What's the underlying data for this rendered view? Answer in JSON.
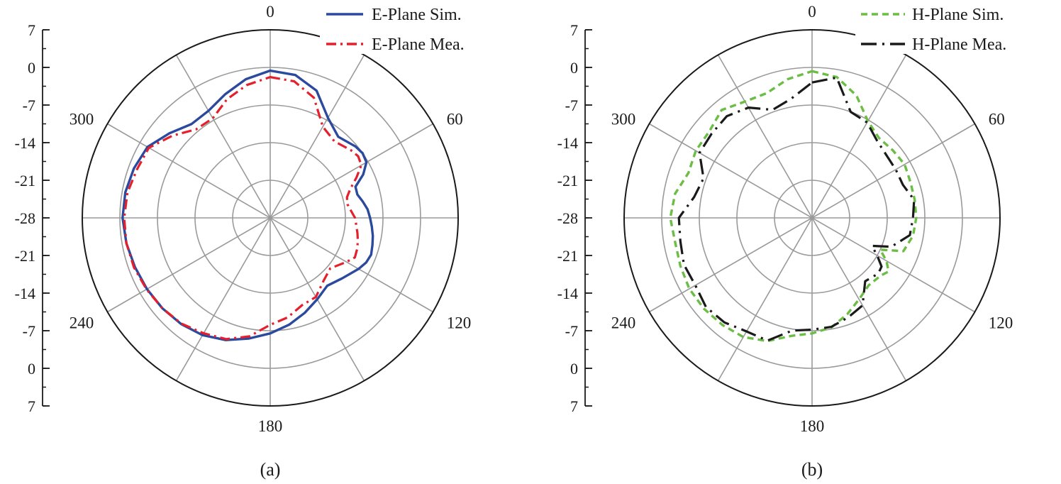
{
  "chart_data": [
    {
      "type": "polar-line",
      "panel_label": "(a)",
      "radial_axis": {
        "ticks": [
          7,
          0,
          -7,
          -14,
          -21,
          -28
        ],
        "scale_ticks_top": [
          "7",
          "0",
          "-7",
          "-14",
          "-21",
          "-28"
        ],
        "scale_ticks_bottom": [
          "-21",
          "-14",
          "-7",
          "0",
          "7"
        ],
        "range": [
          -28,
          7
        ]
      },
      "angle_labels": [
        {
          "angle": 0,
          "text": "0"
        },
        {
          "angle": 60,
          "text": "60"
        },
        {
          "angle": 120,
          "text": "120"
        },
        {
          "angle": 180,
          "text": "180"
        },
        {
          "angle": 240,
          "text": "240"
        },
        {
          "angle": 300,
          "text": "300"
        }
      ],
      "legend_position": "top-right",
      "series": [
        {
          "name": "E-Plane Sim.",
          "color": "#2b4a9e",
          "dash": "solid",
          "angles": [
            0,
            10,
            20,
            30,
            40,
            50,
            55,
            60,
            65,
            70,
            75,
            80,
            85,
            90,
            95,
            100,
            105,
            110,
            115,
            120,
            130,
            140,
            150,
            160,
            170,
            180,
            190,
            200,
            210,
            220,
            230,
            240,
            250,
            260,
            270,
            280,
            290,
            300,
            310,
            320,
            330,
            340,
            350
          ],
          "values": [
            -0.6,
            -1.0,
            -2.8,
            -6.5,
            -8.3,
            -7.3,
            -7.0,
            -7.3,
            -8.9,
            -11.1,
            -11.2,
            -10.5,
            -9.8,
            -9.4,
            -9.0,
            -8.6,
            -8.3,
            -8.0,
            -8.3,
            -9.0,
            -10.5,
            -11.5,
            -10.5,
            -9.2,
            -7.8,
            -6.5,
            -5.2,
            -3.8,
            -2.8,
            -2.2,
            -1.8,
            -1.5,
            -1.2,
            -0.8,
            -0.5,
            -0.6,
            -1.0,
            -1.6,
            -3.5,
            -5.2,
            -5.0,
            -3.5,
            -1.8
          ]
        },
        {
          "name": "E-Plane Mea.",
          "color": "#e3202c",
          "dash": "dashdot",
          "angles": [
            0,
            10,
            20,
            30,
            40,
            50,
            55,
            60,
            65,
            70,
            75,
            80,
            85,
            90,
            95,
            100,
            105,
            110,
            115,
            120,
            130,
            140,
            150,
            160,
            170,
            180,
            190,
            200,
            210,
            220,
            230,
            240,
            250,
            260,
            270,
            280,
            290,
            300,
            310,
            320,
            330,
            340,
            350
          ],
          "values": [
            -1.8,
            -2.2,
            -4.2,
            -8.4,
            -9.4,
            -8.4,
            -8.0,
            -8.4,
            -10.3,
            -12.1,
            -13.2,
            -13.4,
            -12.9,
            -12.2,
            -11.9,
            -11.5,
            -11.1,
            -10.8,
            -10.6,
            -11.6,
            -13.4,
            -12.6,
            -11.0,
            -10.7,
            -9.2,
            -8.1,
            -5.6,
            -4.0,
            -3.2,
            -2.3,
            -1.8,
            -1.4,
            -1.0,
            -0.8,
            -0.8,
            -1.0,
            -1.6,
            -1.9,
            -4.2,
            -6.5,
            -6.6,
            -4.5,
            -2.9
          ]
        }
      ]
    },
    {
      "type": "polar-line",
      "panel_label": "(b)",
      "radial_axis": {
        "ticks": [
          7,
          0,
          -7,
          -14,
          -21,
          -28
        ],
        "scale_ticks_top": [
          "7",
          "0",
          "-7",
          "-14",
          "-21",
          "-28"
        ],
        "scale_ticks_bottom": [
          "-21",
          "-14",
          "-7",
          "0",
          "7"
        ],
        "range": [
          -28,
          7
        ]
      },
      "angle_labels": [
        {
          "angle": 0,
          "text": "0"
        },
        {
          "angle": 60,
          "text": "60"
        },
        {
          "angle": 120,
          "text": "120"
        },
        {
          "angle": 180,
          "text": "180"
        },
        {
          "angle": 240,
          "text": "240"
        },
        {
          "angle": 300,
          "text": "300"
        }
      ],
      "legend_position": "top-right",
      "series": [
        {
          "name": "H-Plane Sim.",
          "color": "#6cbd45",
          "dash": "dashed",
          "angles": [
            0,
            10,
            20,
            30,
            40,
            50,
            60,
            70,
            80,
            90,
            100,
            110,
            115,
            120,
            125,
            130,
            140,
            150,
            160,
            170,
            180,
            190,
            200,
            210,
            220,
            230,
            240,
            250,
            260,
            270,
            280,
            290,
            300,
            310,
            320,
            330,
            340,
            350
          ],
          "values": [
            -0.7,
            -1.4,
            -3.8,
            -7.2,
            -8.6,
            -8.4,
            -8.1,
            -8.5,
            -8.6,
            -8.6,
            -8.9,
            -9.9,
            -14.0,
            -12.0,
            -10.6,
            -11.3,
            -11.6,
            -10.5,
            -8.9,
            -7.3,
            -6.5,
            -5.7,
            -3.6,
            -2.4,
            -2.0,
            -1.7,
            -1.6,
            -1.9,
            -2.1,
            -1.6,
            -2.1,
            -3.5,
            -3.0,
            -3.0,
            -1.8,
            -3.0,
            -3.3,
            -1.8
          ]
        },
        {
          "name": "H-Plane Mea.",
          "color": "#1a1a1a",
          "dash": "longdashdot",
          "angles": [
            0,
            10,
            20,
            30,
            40,
            50,
            60,
            70,
            80,
            90,
            100,
            110,
            115,
            120,
            125,
            130,
            140,
            150,
            160,
            170,
            180,
            190,
            200,
            210,
            220,
            230,
            240,
            250,
            260,
            270,
            280,
            290,
            300,
            310,
            320,
            330,
            340,
            350
          ],
          "values": [
            -2.8,
            -1.5,
            -7.0,
            -7.5,
            -9.2,
            -9.9,
            -10.0,
            -10.0,
            -8.7,
            -9.2,
            -9.5,
            -12.3,
            -15.7,
            -14.0,
            -12.2,
            -11.9,
            -12.6,
            -9.2,
            -8.3,
            -7.4,
            -7.2,
            -6.7,
            -3.7,
            -3.6,
            -2.6,
            -2.2,
            -2.9,
            -2.6,
            -3.1,
            -3.2,
            -5.7,
            -6.5,
            -3.8,
            -3.6,
            -3.3,
            -4.3,
            -6.6,
            -5.5
          ]
        }
      ]
    }
  ]
}
